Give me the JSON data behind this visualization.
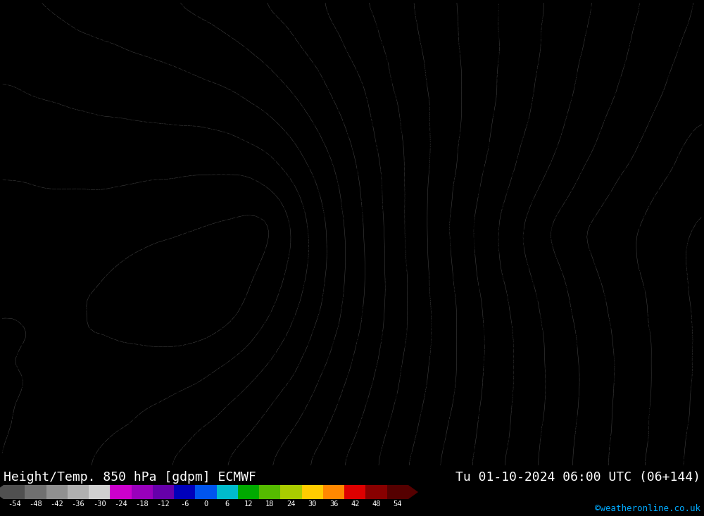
{
  "title_left": "Height/Temp. 850 hPa [gdpm] ECMWF",
  "title_right": "Tu 01-10-2024 06:00 UTC (06+144)",
  "credit": "©weatheronline.co.uk",
  "bg_color": "#FFD700",
  "text_color": "#000000",
  "colorbar_values": [
    -54,
    -48,
    -42,
    -36,
    -30,
    -24,
    -18,
    -12,
    -6,
    0,
    6,
    12,
    18,
    24,
    30,
    36,
    42,
    48,
    54
  ],
  "colorbar_colors": [
    "#505050",
    "#707070",
    "#909090",
    "#B0B0B0",
    "#D0D0D0",
    "#CC00CC",
    "#9900BB",
    "#6600AA",
    "#0000BB",
    "#0055EE",
    "#00BBCC",
    "#00AA00",
    "#55BB00",
    "#AACC00",
    "#FFCC00",
    "#FF8800",
    "#DD0000",
    "#880000",
    "#550000"
  ],
  "fig_width": 10.0,
  "fig_height": 7.33,
  "numbers_fontsize": 5.5,
  "numbers_per_row": 145,
  "numbers_per_col": 88
}
